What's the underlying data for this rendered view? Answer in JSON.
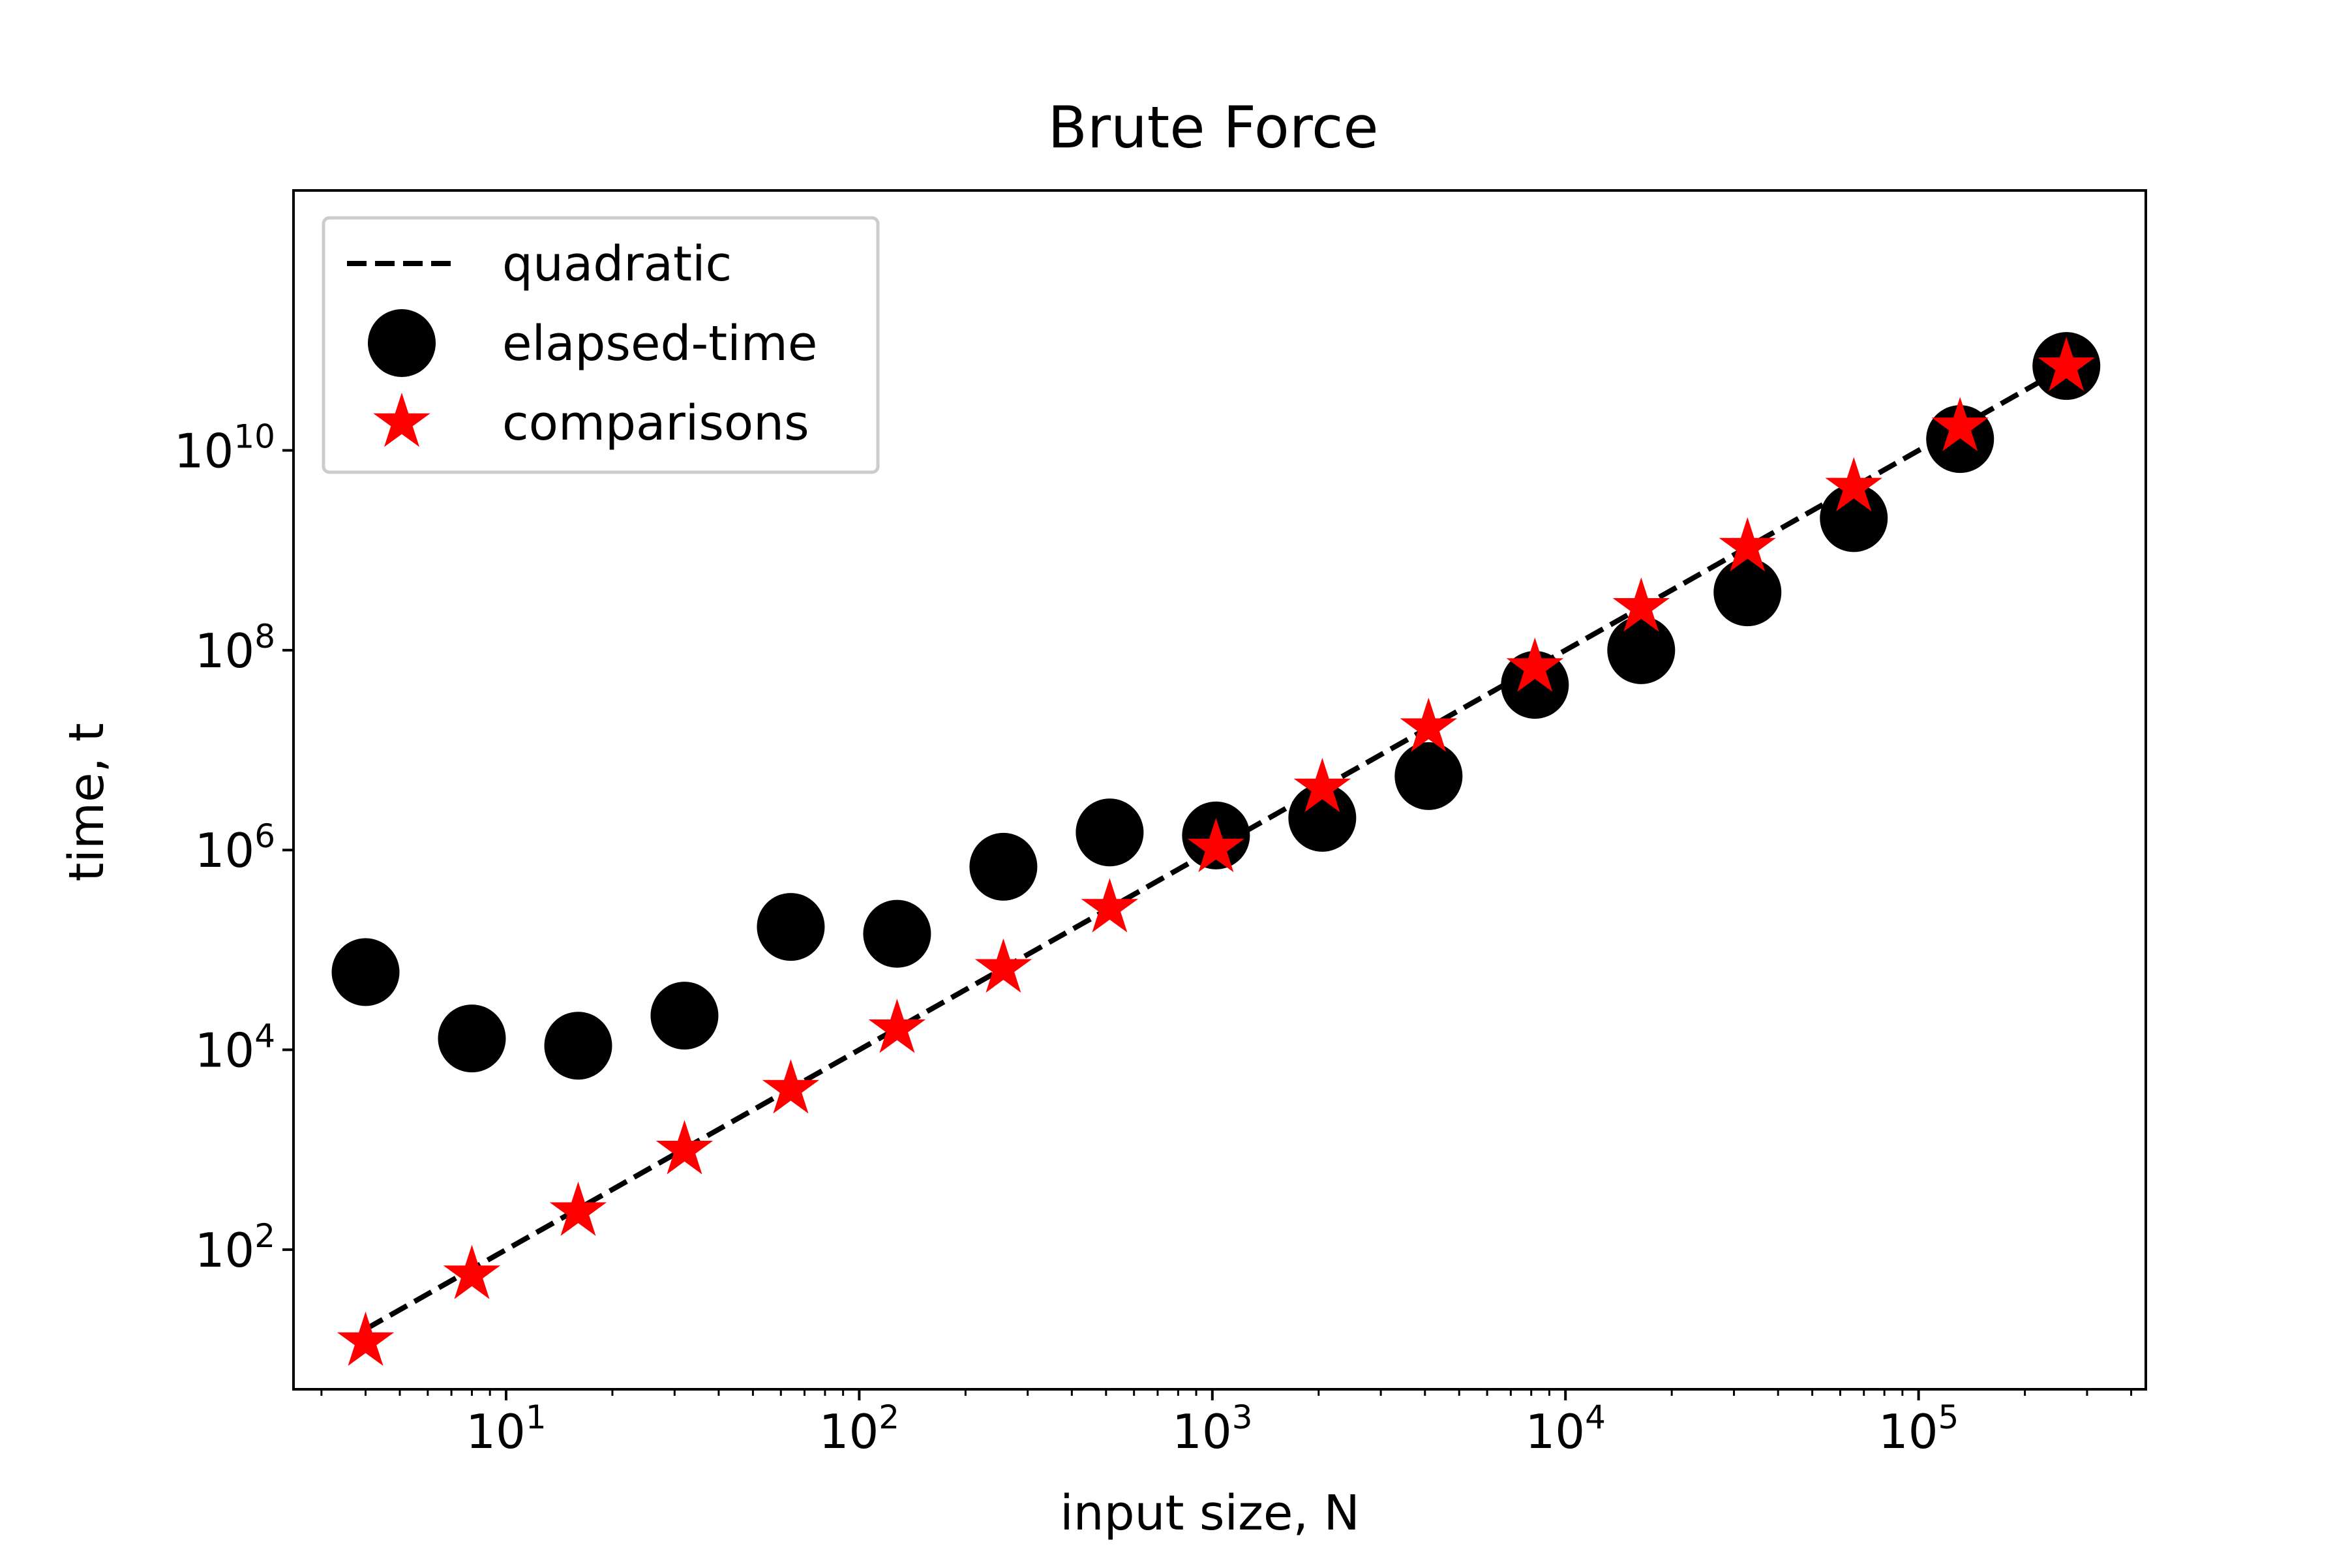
{
  "chart_data": {
    "type": "scatter",
    "title": "Brute Force",
    "xlabel": "input size, N",
    "ylabel": "time, t",
    "x_scale": "log",
    "y_scale": "log",
    "xlim": [
      2.5,
      440000
    ],
    "ylim": [
      4,
      4000000000000
    ],
    "grid": false,
    "legend_position": "upper-left",
    "x_tick_labels": [
      {
        "value": 10,
        "base": "10",
        "exp": "1"
      },
      {
        "value": 100,
        "base": "10",
        "exp": "2"
      },
      {
        "value": 1000,
        "base": "10",
        "exp": "3"
      },
      {
        "value": 10000,
        "base": "10",
        "exp": "4"
      },
      {
        "value": 100000,
        "base": "10",
        "exp": "5"
      }
    ],
    "y_tick_labels": [
      {
        "value": 100,
        "base": "10",
        "exp": "2"
      },
      {
        "value": 10000,
        "base": "10",
        "exp": "4"
      },
      {
        "value": 1000000,
        "base": "10",
        "exp": "6"
      },
      {
        "value": 100000000,
        "base": "10",
        "exp": "8"
      },
      {
        "value": 10000000000,
        "base": "10",
        "exp": "10"
      }
    ],
    "x": [
      4,
      8,
      16,
      32,
      64,
      128,
      256,
      512,
      1024,
      2048,
      4096,
      8192,
      16384,
      32768,
      65536,
      131072,
      262144
    ],
    "series": [
      {
        "name": "quadratic",
        "style": "dashed-line",
        "color": "#000000",
        "values": [
          16,
          64,
          256,
          1024,
          4096,
          16384,
          65536,
          262144,
          1048576,
          4194304,
          16777216,
          67108864,
          268435456,
          1073741824,
          4294967296,
          17179869184,
          68719476736
        ]
      },
      {
        "name": "elapsed-time",
        "style": "circle",
        "color": "#000000",
        "values": [
          60000,
          13000,
          11000,
          22000,
          170000,
          145000,
          680000,
          1500000,
          1400000,
          2100000,
          5500000,
          45000000,
          100000000,
          380000000,
          2100000000,
          13000000000,
          70000000000
        ]
      },
      {
        "name": "comparisons",
        "style": "star",
        "color": "#ff0000",
        "values": [
          12,
          56,
          240,
          992,
          4032,
          16256,
          65280,
          261632,
          1047552,
          4192256,
          16773120,
          67100672,
          268419072,
          1073709056,
          4294901760,
          17179738112,
          68719214592
        ]
      }
    ]
  }
}
